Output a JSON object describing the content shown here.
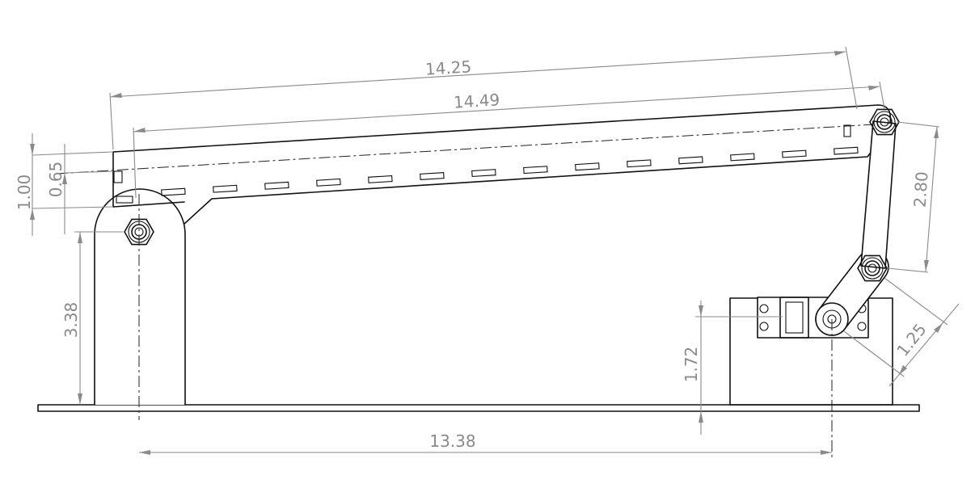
{
  "dimensions": {
    "top_length": "14.25",
    "slot_span": "14.49",
    "panel_offset_outer": "1.00",
    "panel_offset_inner": "0.65",
    "pivot_height": "3.38",
    "link_length": "2.80",
    "horn_length": "1.25",
    "servo_height": "1.72",
    "base_span": "13.38"
  },
  "colors": {
    "part": "#111111",
    "dimension": "#8a8a8a"
  }
}
